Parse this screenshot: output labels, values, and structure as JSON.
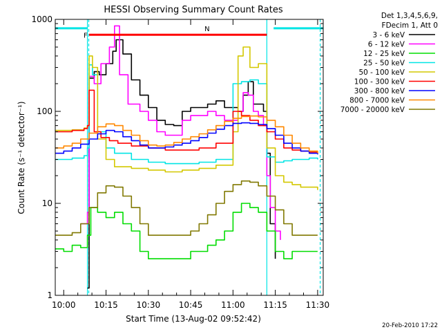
{
  "chart_data": {
    "type": "line",
    "title": "HESSI Observing Summary Count Rates",
    "xlabel": "Start Time (13-Aug-02 09:52:42)",
    "ylabel": "Count Rate (s⁻¹ detector⁻¹)",
    "yscale": "log",
    "ylim": [
      1,
      1000
    ],
    "xlim": [
      9.95,
      11.533
    ],
    "x_unit": "hours UT",
    "x_ticks": [
      10.0,
      10.25,
      10.5,
      10.75,
      11.0,
      11.25,
      11.5
    ],
    "x_tick_labels": [
      "10:00",
      "10:15",
      "10:30",
      "10:45",
      "11:00",
      "11:15",
      "11:30"
    ],
    "y_ticks": [
      1,
      10,
      100,
      1000
    ],
    "y_tick_labels": [
      "1",
      "10",
      "100",
      "1000"
    ],
    "grid": false,
    "legend_position": "right",
    "legend_header": [
      "Det 1,3,4,5,6,9,",
      "FDecim 1, Att 0"
    ],
    "footer": "20-Feb-2010 17:22",
    "bars": [
      {
        "label": "N",
        "color": "#00e5e5",
        "segments": [
          [
            9.95,
            10.14
          ],
          [
            11.24,
            11.533
          ]
        ],
        "y_value": 800
      },
      {
        "label": "F",
        "color": "#ff0000",
        "segments": [
          [
            10.15,
            11.2
          ]
        ],
        "y_value": 680
      }
    ],
    "vlines": [
      {
        "x": 10.14,
        "color": "#00e5e5",
        "style": "solid"
      },
      {
        "x": 10.148,
        "color": "#00e5e5",
        "style": "dashed"
      },
      {
        "x": 11.2,
        "color": "#00e5e5",
        "style": "solid"
      },
      {
        "x": 11.515,
        "color": "#00e5e5",
        "style": "dashed"
      }
    ],
    "series": [
      {
        "name": "3 - 6 keV",
        "color": "#000000",
        "x": [
          10.14,
          10.15,
          10.18,
          10.21,
          10.25,
          10.29,
          10.31,
          10.35,
          10.4,
          10.45,
          10.5,
          10.55,
          10.6,
          10.65,
          10.7,
          10.75,
          10.8,
          10.85,
          10.9,
          10.95,
          11.0,
          11.03,
          11.06,
          11.09,
          11.12,
          11.15,
          11.18,
          11.2,
          11.22,
          11.25
        ],
        "y": [
          1.2,
          230,
          270,
          250,
          330,
          450,
          600,
          420,
          220,
          150,
          110,
          80,
          72,
          70,
          100,
          110,
          110,
          120,
          130,
          110,
          110,
          100,
          150,
          210,
          120,
          120,
          100,
          35,
          6,
          2.5
        ]
      },
      {
        "name": "6 - 12 keV",
        "color": "#ff00ff",
        "x": [
          10.1,
          10.14,
          10.15,
          10.18,
          10.22,
          10.27,
          10.3,
          10.33,
          10.38,
          10.45,
          10.5,
          10.55,
          10.6,
          10.65,
          10.7,
          10.75,
          10.8,
          10.85,
          10.9,
          10.95,
          11.0,
          11.03,
          11.06,
          11.09,
          11.12,
          11.15,
          11.18,
          11.2,
          11.22,
          11.25,
          11.28
        ],
        "y": [
          6,
          8,
          240,
          200,
          330,
          500,
          850,
          250,
          120,
          100,
          80,
          60,
          55,
          55,
          80,
          90,
          90,
          100,
          90,
          80,
          80,
          100,
          160,
          150,
          100,
          90,
          70,
          20,
          9,
          5,
          4
        ]
      },
      {
        "name": "12 - 25 keV",
        "color": "#00dd00",
        "x": [
          9.95,
          10.0,
          10.05,
          10.1,
          10.14,
          10.16,
          10.2,
          10.25,
          10.3,
          10.35,
          10.4,
          10.45,
          10.5,
          10.55,
          10.6,
          10.65,
          10.7,
          10.75,
          10.8,
          10.85,
          10.9,
          10.95,
          11.0,
          11.05,
          11.1,
          11.15,
          11.2,
          11.25,
          11.3,
          11.35,
          11.4,
          11.45,
          11.5
        ],
        "y": [
          3.2,
          3.0,
          3.5,
          3.3,
          4.5,
          9,
          8,
          7,
          8,
          6,
          5,
          3,
          2.5,
          2.5,
          2.5,
          2.5,
          2.5,
          3,
          3,
          3.5,
          4,
          5,
          8,
          10,
          9,
          8,
          5,
          3,
          2.5,
          3,
          3,
          3,
          3
        ]
      },
      {
        "name": "25 - 50 keV",
        "color": "#00e5e5",
        "x": [
          9.95,
          10.05,
          10.12,
          10.14,
          10.15,
          10.17,
          10.2,
          10.25,
          10.3,
          10.4,
          10.5,
          10.6,
          10.7,
          10.8,
          10.9,
          11.0,
          11.05,
          11.1,
          11.15,
          11.2,
          11.25,
          11.3,
          11.35,
          11.4,
          11.45,
          11.5
        ],
        "y": [
          30,
          31,
          33,
          40,
          320,
          250,
          60,
          40,
          35,
          30,
          28,
          27,
          27,
          28,
          30,
          200,
          210,
          220,
          200,
          32,
          28,
          29,
          30,
          30,
          31,
          30
        ]
      },
      {
        "name": "50 - 100 keV",
        "color": "#d4c800",
        "x": [
          9.95,
          10.05,
          10.12,
          10.14,
          10.15,
          10.17,
          10.2,
          10.25,
          10.3,
          10.4,
          10.5,
          10.6,
          10.7,
          10.8,
          10.9,
          11.0,
          11.03,
          11.06,
          11.1,
          11.15,
          11.2,
          11.25,
          11.3,
          11.35,
          11.4,
          11.45,
          11.5
        ],
        "y": [
          62,
          63,
          66,
          70,
          400,
          300,
          50,
          30,
          25,
          24,
          23,
          22,
          23,
          24,
          26,
          60,
          400,
          500,
          300,
          330,
          40,
          20,
          17,
          16,
          15,
          15,
          14
        ]
      },
      {
        "name": "100 - 300 keV",
        "color": "#ff0000",
        "x": [
          9.95,
          10.05,
          10.12,
          10.14,
          10.15,
          10.18,
          10.22,
          10.27,
          10.32,
          10.4,
          10.5,
          10.6,
          10.7,
          10.8,
          10.9,
          11.0,
          11.05,
          11.1,
          11.15,
          11.2,
          11.25,
          11.3,
          11.35,
          11.4,
          11.45,
          11.5
        ],
        "y": [
          60,
          62,
          65,
          70,
          170,
          60,
          52,
          48,
          45,
          42,
          40,
          38,
          38,
          40,
          45,
          100,
          90,
          80,
          70,
          60,
          50,
          40,
          38,
          37,
          36,
          35
        ]
      },
      {
        "name": "300 - 800 keV",
        "color": "#0000ff",
        "x": [
          9.95,
          10.0,
          10.05,
          10.1,
          10.15,
          10.2,
          10.25,
          10.3,
          10.35,
          10.4,
          10.45,
          10.5,
          10.55,
          10.6,
          10.65,
          10.7,
          10.75,
          10.8,
          10.85,
          10.9,
          10.95,
          11.0,
          11.05,
          11.1,
          11.15,
          11.2,
          11.25,
          11.3,
          11.35,
          11.4,
          11.45,
          11.5
        ],
        "y": [
          35,
          37,
          40,
          44,
          50,
          57,
          62,
          60,
          53,
          48,
          43,
          40,
          40,
          41,
          43,
          45,
          48,
          52,
          58,
          64,
          70,
          74,
          75,
          74,
          72,
          65,
          55,
          45,
          40,
          37,
          35,
          34
        ]
      },
      {
        "name": "800 - 7000 keV",
        "color": "#ff8800",
        "x": [
          9.95,
          10.0,
          10.05,
          10.1,
          10.15,
          10.2,
          10.25,
          10.3,
          10.35,
          10.4,
          10.45,
          10.5,
          10.55,
          10.6,
          10.65,
          10.7,
          10.75,
          10.8,
          10.85,
          10.9,
          10.95,
          11.0,
          11.05,
          11.1,
          11.15,
          11.2,
          11.25,
          11.3,
          11.35,
          11.4,
          11.45,
          11.5
        ],
        "y": [
          40,
          42,
          45,
          50,
          58,
          68,
          73,
          70,
          62,
          55,
          48,
          43,
          42,
          43,
          46,
          50,
          53,
          57,
          63,
          70,
          78,
          84,
          88,
          89,
          87,
          80,
          68,
          55,
          45,
          40,
          37,
          35
        ]
      },
      {
        "name": "7000 - 20000 keV",
        "color": "#807800",
        "x": [
          9.95,
          10.0,
          10.05,
          10.1,
          10.15,
          10.2,
          10.25,
          10.3,
          10.35,
          10.4,
          10.45,
          10.5,
          10.55,
          10.6,
          10.65,
          10.7,
          10.75,
          10.8,
          10.85,
          10.9,
          10.95,
          11.0,
          11.05,
          11.1,
          11.15,
          11.2,
          11.25,
          11.3,
          11.35,
          11.4,
          11.45,
          11.5
        ],
        "y": [
          4.5,
          4.5,
          4.8,
          6,
          9,
          13,
          15.5,
          15,
          12,
          9,
          6,
          4.5,
          4.5,
          4.5,
          4.5,
          4.5,
          5,
          6,
          7.5,
          10,
          13.5,
          16,
          17.5,
          17,
          15.5,
          12,
          8.5,
          6,
          4.5,
          4.5,
          4.5,
          4.5
        ]
      }
    ]
  }
}
